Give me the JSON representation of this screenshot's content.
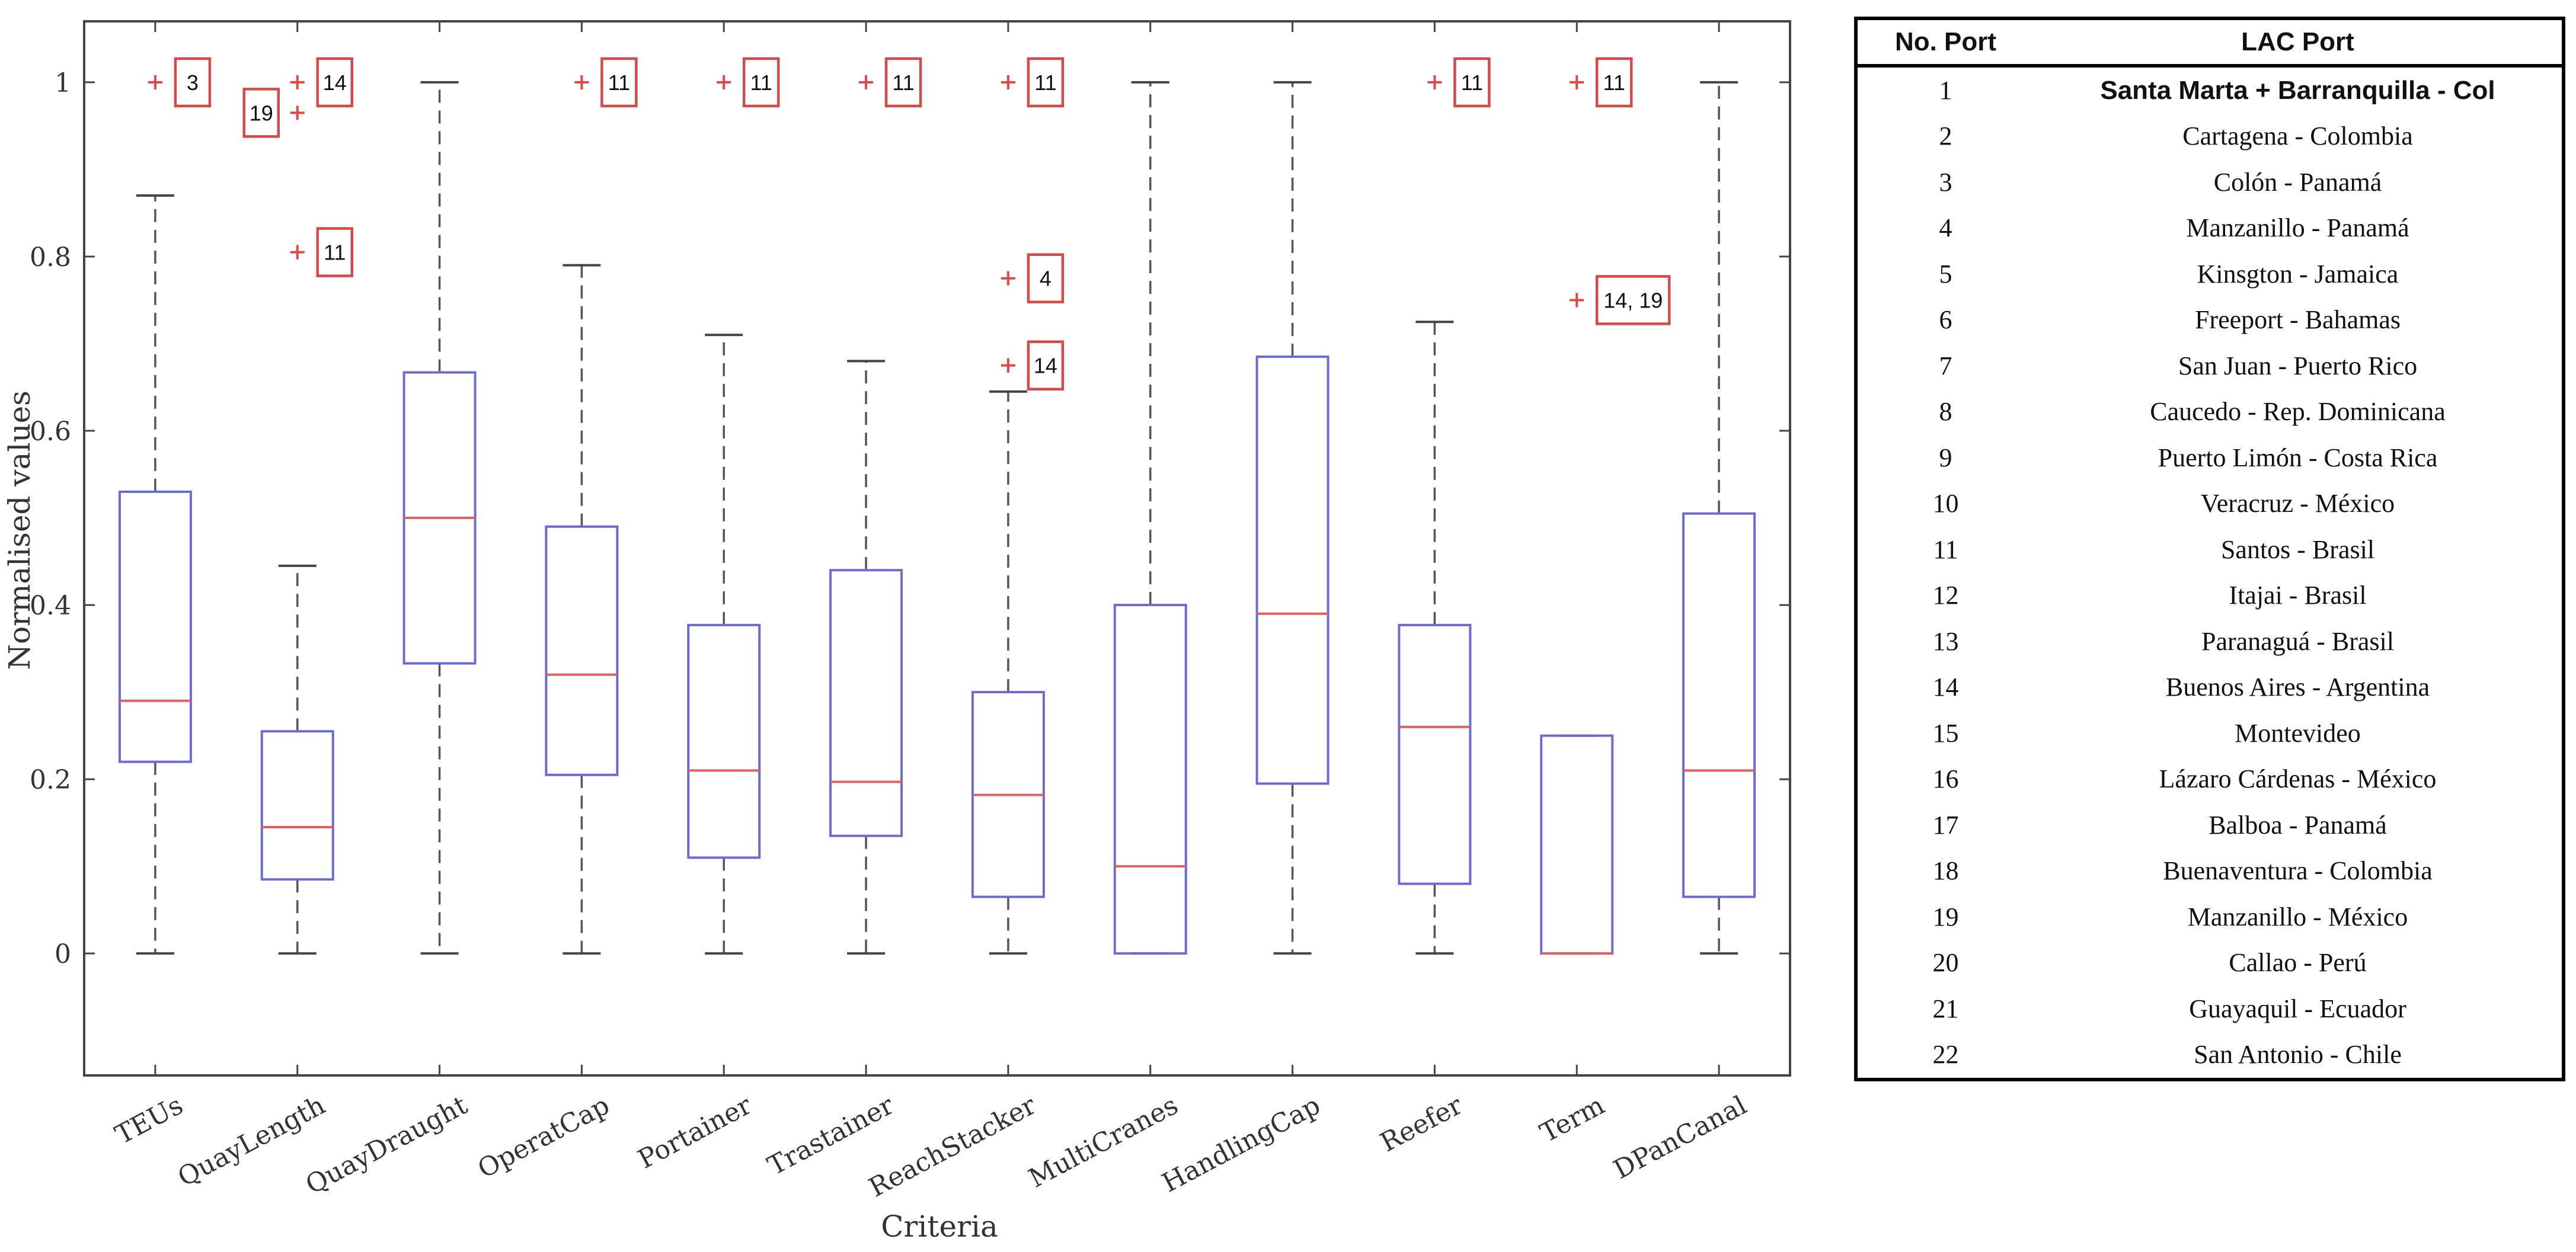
{
  "chart_data": {
    "type": "box",
    "xlabel": "Criteria",
    "ylabel": "Normalised values",
    "ylim": [
      -0.14,
      1.07
    ],
    "yticks": [
      0,
      0.2,
      0.4,
      0.6,
      0.8,
      1
    ],
    "ytick_labels": [
      "0",
      "0.2",
      "0.4",
      "0.6",
      "0.8",
      "1"
    ],
    "categories": [
      "TEUs",
      "QuayLength",
      "QuayDraught",
      "OperatCap",
      "Portainer",
      "Trastainer",
      "ReachStacker",
      "MultiCranes",
      "HandlingCap",
      "Reefer",
      "Term",
      "DPanCanal"
    ],
    "boxes": [
      {
        "name": "TEUs",
        "low": 0,
        "q1": 0.22,
        "median": 0.29,
        "q3": 0.53,
        "high": 0.87
      },
      {
        "name": "QuayLength",
        "low": 0,
        "q1": 0.085,
        "median": 0.145,
        "q3": 0.255,
        "high": 0.445
      },
      {
        "name": "QuayDraught",
        "low": 0,
        "q1": 0.333,
        "median": 0.5,
        "q3": 0.667,
        "high": 1
      },
      {
        "name": "OperatCap",
        "low": 0,
        "q1": 0.205,
        "median": 0.32,
        "q3": 0.49,
        "high": 0.79
      },
      {
        "name": "Portainer",
        "low": 0,
        "q1": 0.11,
        "median": 0.21,
        "q3": 0.377,
        "high": 0.71
      },
      {
        "name": "Trastainer",
        "low": 0,
        "q1": 0.135,
        "median": 0.197,
        "q3": 0.44,
        "high": 0.68
      },
      {
        "name": "ReachStacker",
        "low": 0,
        "q1": 0.065,
        "median": 0.182,
        "q3": 0.3,
        "high": 0.645
      },
      {
        "name": "MultiCranes",
        "low": 0,
        "q1": 0,
        "median": 0.1,
        "q3": 0.4,
        "high": 1
      },
      {
        "name": "HandlingCap",
        "low": 0,
        "q1": 0.195,
        "median": 0.39,
        "q3": 0.685,
        "high": 1
      },
      {
        "name": "Reefer",
        "low": 0,
        "q1": 0.08,
        "median": 0.26,
        "q3": 0.377,
        "high": 0.725
      },
      {
        "name": "Term",
        "low": 0,
        "q1": 0,
        "median": 0,
        "q3": 0.25,
        "high": 0.25
      },
      {
        "name": "DPanCanal",
        "low": 0,
        "q1": 0.065,
        "median": 0.21,
        "q3": 0.505,
        "high": 1
      }
    ],
    "outliers": [
      {
        "category": "TEUs",
        "value": 1,
        "label": "3",
        "side": "right"
      },
      {
        "category": "QuayLength",
        "value": 1,
        "label": "14",
        "side": "right"
      },
      {
        "category": "QuayLength",
        "value": 0.965,
        "label": "19",
        "side": "left"
      },
      {
        "category": "QuayLength",
        "value": 0.805,
        "label": "11",
        "side": "right"
      },
      {
        "category": "OperatCap",
        "value": 1,
        "label": "11",
        "side": "right"
      },
      {
        "category": "Portainer",
        "value": 1,
        "label": "11",
        "side": "right"
      },
      {
        "category": "Trastainer",
        "value": 1,
        "label": "11",
        "side": "right"
      },
      {
        "category": "ReachStacker",
        "value": 1,
        "label": "11",
        "side": "right"
      },
      {
        "category": "ReachStacker",
        "value": 0.775,
        "label": "4",
        "side": "right"
      },
      {
        "category": "ReachStacker",
        "value": 0.675,
        "label": "14",
        "side": "right"
      },
      {
        "category": "Reefer",
        "value": 1,
        "label": "11",
        "side": "right"
      },
      {
        "category": "Term",
        "value": 1,
        "label": "11",
        "side": "right"
      },
      {
        "category": "Term",
        "value": 0.75,
        "label": "14, 19",
        "side": "right"
      }
    ]
  },
  "table": {
    "headers": [
      "No. Port",
      "LAC Port"
    ],
    "rows": [
      {
        "no": "1",
        "port": "Santa Marta + Barranquilla - Col"
      },
      {
        "no": "2",
        "port": "Cartagena - Colombia"
      },
      {
        "no": "3",
        "port": "Colón - Panamá"
      },
      {
        "no": "4",
        "port": "Manzanillo - Panamá"
      },
      {
        "no": "5",
        "port": "Kinsgton - Jamaica"
      },
      {
        "no": "6",
        "port": "Freeport - Bahamas"
      },
      {
        "no": "7",
        "port": "San Juan - Puerto Rico"
      },
      {
        "no": "8",
        "port": "Caucedo - Rep. Dominicana"
      },
      {
        "no": "9",
        "port": "Puerto Limón - Costa Rica"
      },
      {
        "no": "10",
        "port": "Veracruz - México"
      },
      {
        "no": "11",
        "port": "Santos - Brasil"
      },
      {
        "no": "12",
        "port": "Itajai - Brasil"
      },
      {
        "no": "13",
        "port": "Paranaguá - Brasil"
      },
      {
        "no": "14",
        "port": "Buenos Aires - Argentina"
      },
      {
        "no": "15",
        "port": "Montevideo"
      },
      {
        "no": "16",
        "port": "Lázaro Cárdenas - México"
      },
      {
        "no": "17",
        "port": "Balboa - Panamá"
      },
      {
        "no": "18",
        "port": "Buenaventura - Colombia"
      },
      {
        "no": "19",
        "port": "Manzanillo - México"
      },
      {
        "no": "20",
        "port": "Callao - Perú"
      },
      {
        "no": "21",
        "port": "Guayaquil - Ecuador"
      },
      {
        "no": "22",
        "port": "San Antonio - Chile"
      }
    ]
  }
}
